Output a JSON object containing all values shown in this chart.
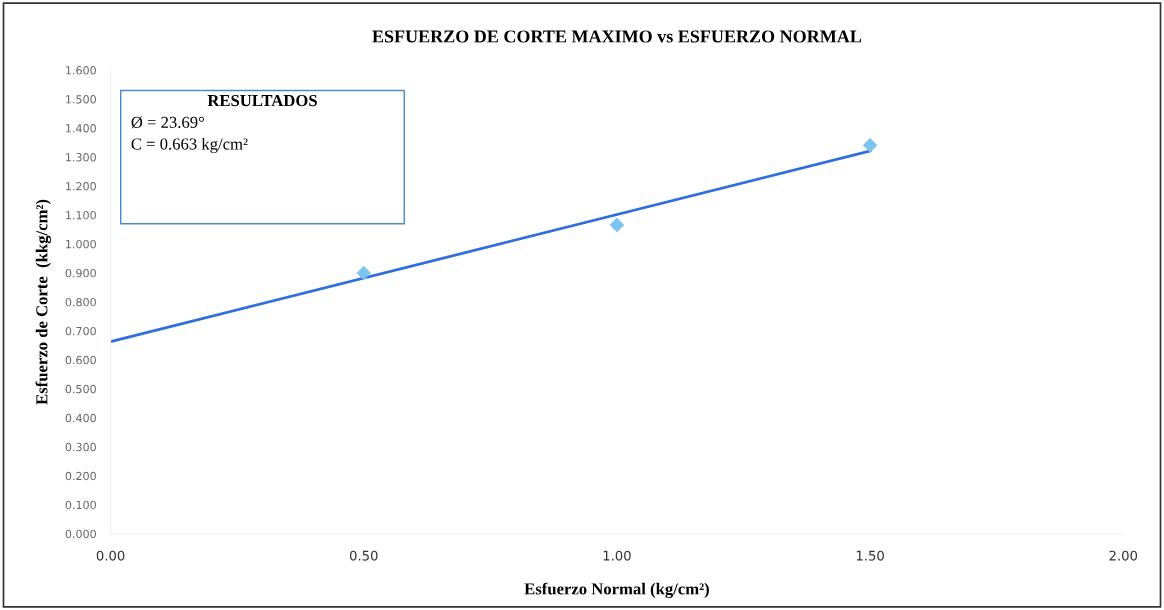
{
  "chart_data": {
    "type": "scatter",
    "title": "ESFUERZO DE CORTE MAXIMO vs ESFUERZO NORMAL",
    "xlabel": "Esfuerzo Normal (kg/cm²)",
    "ylabel": "Esfuerzo de Corte  (kkg/cm²)",
    "xlim": [
      0,
      2
    ],
    "xticks": [
      {
        "value": 0,
        "label": "0.00"
      },
      {
        "value": 0.5,
        "label": "0.50"
      },
      {
        "value": 1,
        "label": "1.00"
      },
      {
        "value": 1.5,
        "label": "1.50"
      },
      {
        "value": 2,
        "label": "2.00"
      }
    ],
    "ylim": [
      0,
      1.6
    ],
    "yticks": [
      {
        "value": 0,
        "label": "0.000"
      },
      {
        "value": 0.1,
        "label": "0.100"
      },
      {
        "value": 0.2,
        "label": "0.200"
      },
      {
        "value": 0.3,
        "label": "0.300"
      },
      {
        "value": 0.4,
        "label": "0.400"
      },
      {
        "value": 0.5,
        "label": "0.500"
      },
      {
        "value": 0.6,
        "label": "0.600"
      },
      {
        "value": 0.7,
        "label": "0.700"
      },
      {
        "value": 0.8,
        "label": "0.800"
      },
      {
        "value": 0.9,
        "label": "0.900"
      },
      {
        "value": 1.0,
        "label": "1.000"
      },
      {
        "value": 1.1,
        "label": "1.100"
      },
      {
        "value": 1.2,
        "label": "1.200"
      },
      {
        "value": 1.3,
        "label": "1.300"
      },
      {
        "value": 1.4,
        "label": "1.400"
      },
      {
        "value": 1.5,
        "label": "1.500"
      },
      {
        "value": 1.6,
        "label": "1.600"
      }
    ],
    "series": [
      {
        "color": "#7cc4f0",
        "marker": "diamond",
        "x": [
          0.5,
          1.0,
          1.5
        ],
        "values": [
          0.9,
          1.066,
          1.341
        ]
      },
      {
        "type": "line",
        "color": "#2e6fdc",
        "marker": "none",
        "line_style": "solid",
        "x": [
          0,
          1.5
        ],
        "values": [
          0.663,
          1.321
        ]
      }
    ],
    "annotations": [
      "RESULTADOS",
      "Ø = 23.69°",
      "C = 0.663 kg/cm²"
    ],
    "grid": false,
    "legend": false
  }
}
